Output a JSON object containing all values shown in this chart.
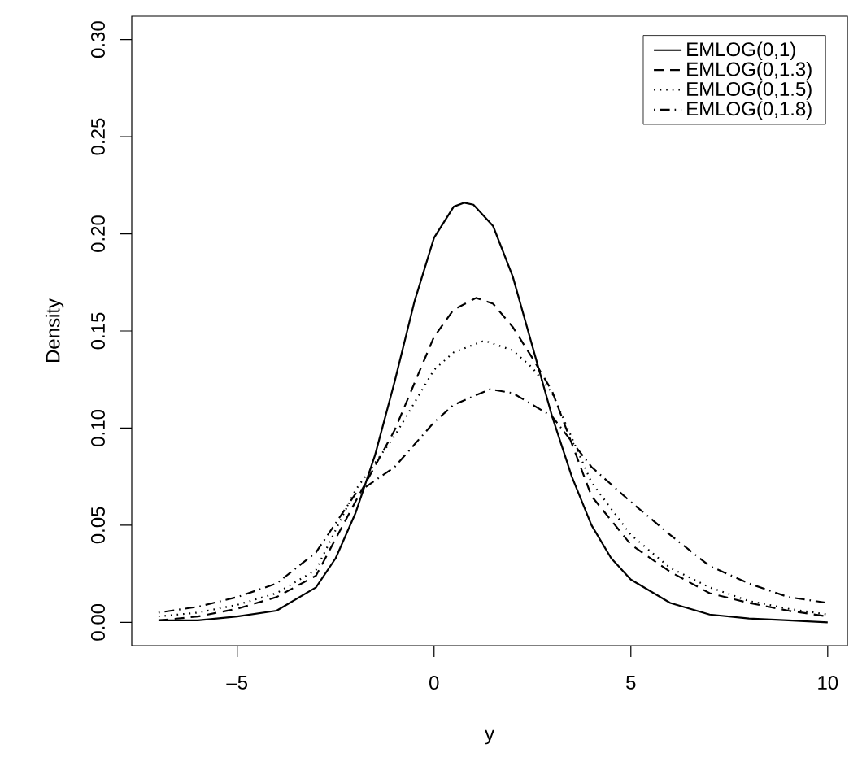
{
  "chart_data": {
    "type": "line",
    "xlabel": "y",
    "ylabel": "Density",
    "xlim": [
      -7.68,
      10.5
    ],
    "ylim": [
      -0.012,
      0.312
    ],
    "xticks": [
      {
        "value": -5,
        "label": "–5"
      },
      0,
      5,
      10
    ],
    "yticks": [
      {
        "value": 0,
        "label": "0.00"
      },
      0.05,
      {
        "value": 0.1,
        "label": "0.10"
      },
      0.15,
      {
        "value": 0.2,
        "label": "0.20"
      },
      0.25,
      {
        "value": 0.3,
        "label": "0.30"
      }
    ],
    "legend": "top right",
    "series": [
      {
        "name": "EMLOG(0,1)",
        "color": "#000000",
        "line_style": "solid",
        "x": [
          -7,
          -6,
          -5,
          -4,
          -3,
          -2.5,
          -2,
          -1.5,
          -1,
          -0.5,
          0,
          0.5,
          0.77,
          1,
          1.5,
          2,
          2.5,
          3,
          3.5,
          4,
          4.5,
          5,
          6,
          7,
          8,
          9,
          10
        ],
        "values": [
          0.001,
          0.001,
          0.003,
          0.006,
          0.018,
          0.033,
          0.056,
          0.086,
          0.124,
          0.165,
          0.198,
          0.214,
          0.216,
          0.215,
          0.204,
          0.178,
          0.142,
          0.106,
          0.075,
          0.05,
          0.033,
          0.022,
          0.01,
          0.004,
          0.002,
          0.001,
          0
        ]
      },
      {
        "name": "EMLOG(0,1.3)",
        "color": "#000000",
        "line_style": "dashed",
        "x": [
          -7,
          -6,
          -5,
          -4,
          -3,
          -2,
          -1,
          0,
          0.5,
          1.07,
          1.5,
          2,
          2.5,
          3,
          4,
          5,
          6,
          7,
          8,
          9,
          10
        ],
        "values": [
          0.001,
          0.003,
          0.007,
          0.013,
          0.024,
          0.062,
          0.099,
          0.147,
          0.161,
          0.167,
          0.164,
          0.152,
          0.136,
          0.119,
          0.065,
          0.04,
          0.026,
          0.015,
          0.01,
          0.006,
          0.003
        ]
      },
      {
        "name": "EMLOG(0,1.5)",
        "color": "#000000",
        "line_style": "dotted",
        "x": [
          -7,
          -6,
          -5,
          -4,
          -3,
          -2,
          -1,
          0,
          0.5,
          1.28,
          2,
          2.5,
          3,
          4,
          5,
          6,
          7,
          8,
          9,
          10
        ],
        "values": [
          0.003,
          0.005,
          0.009,
          0.015,
          0.027,
          0.068,
          0.096,
          0.13,
          0.139,
          0.145,
          0.14,
          0.131,
          0.118,
          0.072,
          0.045,
          0.028,
          0.018,
          0.011,
          0.007,
          0.004
        ]
      },
      {
        "name": "EMLOG(0,1.8)",
        "color": "#000000",
        "line_style": "dashdotted",
        "x": [
          -7,
          -6,
          -5,
          -4,
          -3,
          -2,
          -1,
          0,
          0.5,
          1.42,
          2,
          3,
          4,
          5,
          6,
          7,
          8,
          9,
          10
        ],
        "values": [
          0.005,
          0.008,
          0.013,
          0.02,
          0.036,
          0.066,
          0.08,
          0.103,
          0.112,
          0.12,
          0.118,
          0.106,
          0.08,
          0.062,
          0.045,
          0.029,
          0.02,
          0.013,
          0.01
        ]
      }
    ]
  }
}
